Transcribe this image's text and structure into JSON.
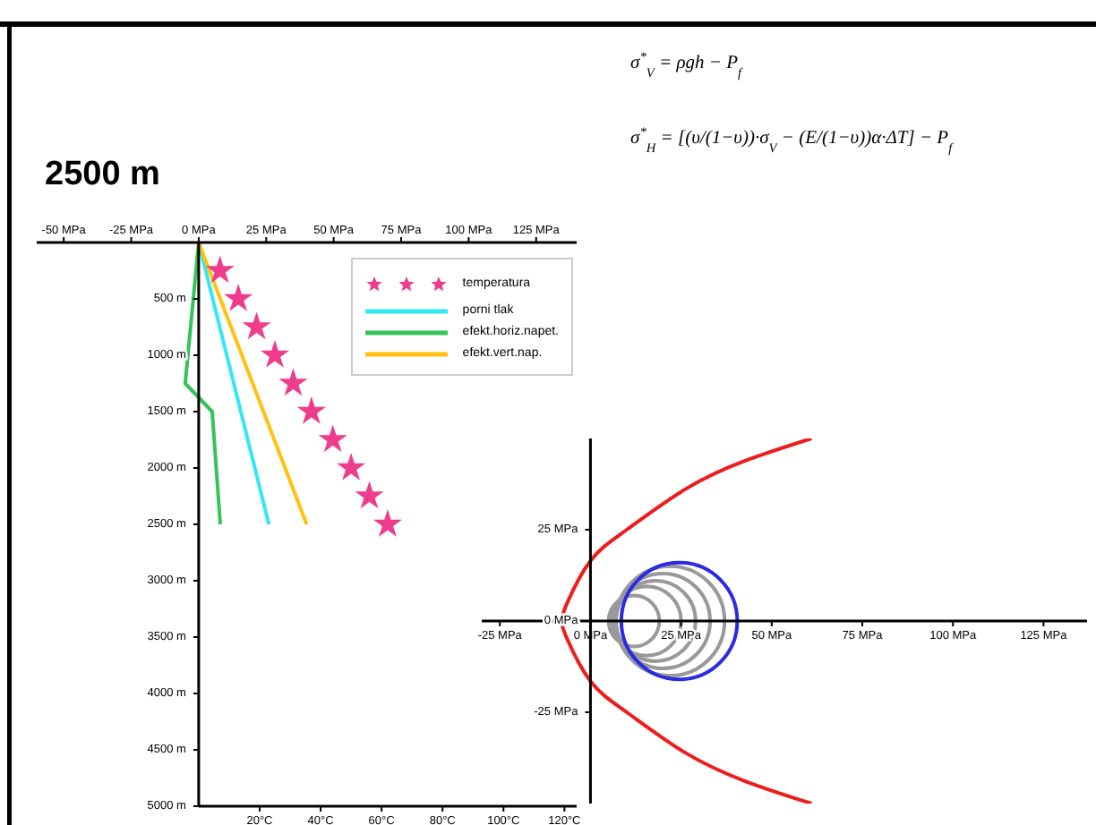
{
  "chart_data": [
    {
      "type": "line",
      "title": "2500 m",
      "annotations": [
        "σ$^{*}$$_{V}$ = ρgh − P$_{f}$",
        "σ$^{*}$$_{H}$ = [(υ/(1−υ))·σ$_{V}$ − (E/(1−υ))α·ΔT] − P$_{f}$"
      ],
      "xlim": [
        0,
        124
      ],
      "xticks": [
        {
          "value": 20,
          "label": "20°C"
        },
        {
          "value": 40,
          "label": "40°C"
        },
        {
          "value": 60,
          "label": "60°C"
        },
        {
          "value": 80,
          "label": "80°C"
        },
        {
          "value": 100,
          "label": "100°C"
        },
        {
          "value": 120,
          "label": "120°C"
        }
      ],
      "x2lim": [
        -60,
        140
      ],
      "x2ticks": [
        {
          "value": -50,
          "label": "-50 MPa"
        },
        {
          "value": -25,
          "label": "-25 MPa"
        },
        {
          "value": 0,
          "label": "0 MPa"
        },
        {
          "value": 25,
          "label": "25 MPa"
        },
        {
          "value": 50,
          "label": "50 MPa"
        },
        {
          "value": 75,
          "label": "75 MPa"
        },
        {
          "value": 100,
          "label": "100 MPa"
        },
        {
          "value": 125,
          "label": "125 MPa"
        }
      ],
      "ylim": [
        5000,
        0
      ],
      "yticks": [
        {
          "value": 500,
          "label": "500 m"
        },
        {
          "value": 1000,
          "label": "1000 m"
        },
        {
          "value": 1500,
          "label": "1500 m"
        },
        {
          "value": 2000,
          "label": "2000 m"
        },
        {
          "value": 2500,
          "label": "2500 m"
        },
        {
          "value": 3000,
          "label": "3000 m"
        },
        {
          "value": 3500,
          "label": "3500 m"
        },
        {
          "value": 4000,
          "label": "4000 m"
        },
        {
          "value": 4500,
          "label": "4500 m"
        },
        {
          "value": 5000,
          "label": "5000 m"
        }
      ],
      "legend": "top right",
      "line_style": "solid",
      "series": [
        {
          "name": "temperatura",
          "type": "scatter",
          "marker": "star",
          "color": "#ee3d8c",
          "x": [
            7,
            13,
            19,
            25,
            31,
            37,
            44,
            50,
            56,
            62
          ],
          "values": [
            250,
            500,
            750,
            1000,
            1250,
            1500,
            1750,
            2000,
            2250,
            2500
          ]
        },
        {
          "name": "porni tlak",
          "color": "#33e8f2",
          "axis": "x2",
          "x": [
            0,
            26
          ],
          "values": [
            0,
            2500
          ]
        },
        {
          "name": "efekt.horiz.napet.",
          "color": "#35c45a",
          "axis": "x2",
          "x": [
            0,
            -5,
            5,
            8
          ],
          "values": [
            0,
            1250,
            1500,
            2500
          ]
        },
        {
          "name": "efekt.vert.nap.",
          "color": "#ffc20e",
          "axis": "x2",
          "x": [
            0,
            40
          ],
          "values": [
            0,
            2500
          ]
        }
      ]
    },
    {
      "type": "line",
      "xlim": [
        -30,
        137
      ],
      "xticks": [
        {
          "value": -25,
          "label": "-25 MPa"
        },
        {
          "value": 0,
          "label": "0 MPa"
        },
        {
          "value": 25,
          "label": "25 MPa"
        },
        {
          "value": 50,
          "label": "50 MPa"
        },
        {
          "value": 75,
          "label": "75 MPa"
        },
        {
          "value": 100,
          "label": "100 MPa"
        },
        {
          "value": 125,
          "label": "125 MPa"
        }
      ],
      "ylim": [
        -50,
        50
      ],
      "yticks": [
        {
          "value": -25,
          "label": "-25 MPa"
        },
        {
          "value": 0,
          "label": "0 MPa"
        },
        {
          "value": 25,
          "label": "25 MPa"
        }
      ],
      "line_style": "solid",
      "series": [
        {
          "color": "#ee1c1c",
          "x": [
            61,
            43,
            26,
            10,
            0,
            -6.4,
            -8,
            -6.4,
            0,
            10,
            26,
            43,
            61
          ],
          "values": [
            -50,
            -44,
            -36,
            -25,
            -16.5,
            -5,
            0,
            5,
            16.5,
            25,
            36,
            44,
            50
          ]
        }
      ]
    }
  ]
}
